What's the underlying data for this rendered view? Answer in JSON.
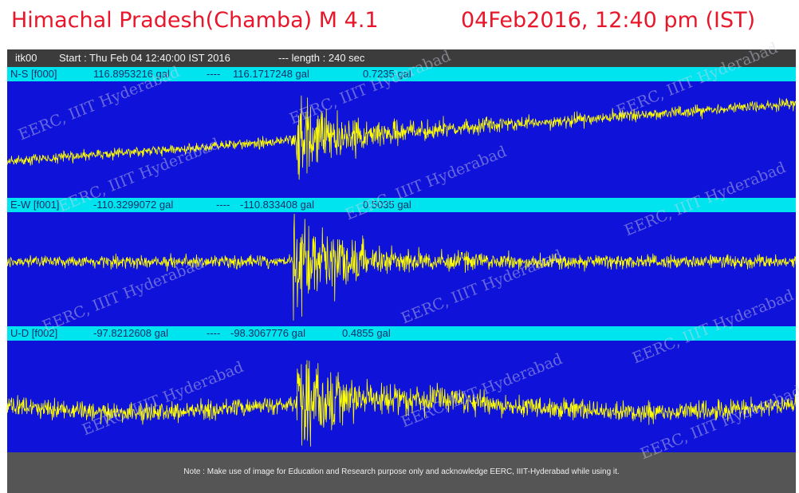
{
  "title_left": "Himachal Pradesh(Chamba) M 4.1",
  "title_right": "04Feb2016, 12:40 pm (IST)",
  "header": {
    "station": "itk00",
    "start": "Start : Thu Feb 04 12:40:00 IST 2016",
    "length": "---  length : 240 sec"
  },
  "channels": [
    {
      "name": "N-S  [f000]",
      "max": "116.8953216 gal",
      "min": "116.1717248 gal",
      "range": "0.7235 gal"
    },
    {
      "name": "E-W [f001]",
      "max": "-110.3299072 gal",
      "min": "-110.833408 gal",
      "range": "0.5035 gal"
    },
    {
      "name": "U-D  [f002]",
      "max": "-97.8212608 gal",
      "min": "-98.3067776 gal",
      "range": "0.4855 gal"
    }
  ],
  "separator": "----",
  "watermark": "EERC, IIIT Hyderabad",
  "footer_note": "Note : Make use of image for Education and Research purpose only and acknowledge EERC, IIIT-Hyderabad while using it.",
  "colors": {
    "title": "#e8162a",
    "plot_bg": "#0f12d8",
    "trace": "#ffff00",
    "channel_bar": "#00e4f0"
  },
  "chart_data": {
    "type": "line",
    "x_unit": "sec",
    "x_range": [
      0,
      240
    ],
    "series": [
      {
        "name": "N-S  [f000]",
        "y_range": [
          116.1717248,
          116.8953216
        ],
        "event_onset_sec": 88,
        "peak_sec": 92
      },
      {
        "name": "E-W [f001]",
        "y_range": [
          -110.833408,
          -110.3299072
        ],
        "event_onset_sec": 87,
        "peak_sec": 95
      },
      {
        "name": "U-D  [f002]",
        "y_range": [
          -98.3067776,
          -97.8212608
        ],
        "event_onset_sec": 88,
        "peak_sec": 95
      }
    ]
  }
}
